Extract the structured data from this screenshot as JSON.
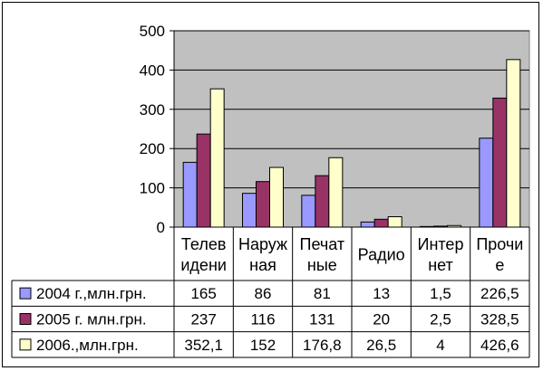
{
  "chart_data": {
    "type": "bar",
    "categories": [
      [
        "Телев",
        "идени"
      ],
      [
        "Наруж",
        "ная"
      ],
      [
        "Печат",
        "ные"
      ],
      [
        "Радио"
      ],
      [
        "Интер",
        "нет"
      ],
      [
        "Прочи",
        "е"
      ]
    ],
    "series": [
      {
        "name": "2004 г.,млн.грн.",
        "color": "#9999ff",
        "values": [
          165,
          86,
          81,
          13,
          1.5,
          226.5
        ],
        "labels": [
          "165",
          "86",
          "81",
          "13",
          "1,5",
          "226,5"
        ]
      },
      {
        "name": "2005 г. млн.грн.",
        "color": "#993366",
        "values": [
          237,
          116,
          131,
          20,
          2.5,
          328.5
        ],
        "labels": [
          "237",
          "116",
          "131",
          "20",
          "2,5",
          "328,5"
        ]
      },
      {
        "name": "2006.,млн.грн.",
        "color": "#ffffcc",
        "values": [
          352.1,
          152,
          176.8,
          26.5,
          4,
          426.6
        ],
        "labels": [
          "352,1",
          "152",
          "176,8",
          "26,5",
          "4",
          "426,6"
        ]
      }
    ],
    "ylim": [
      0,
      500
    ],
    "yticks": [
      "0",
      "100",
      "200",
      "300",
      "400",
      "500"
    ],
    "grid": true,
    "plot_background": "#c0c0c0",
    "legend": "data-table"
  }
}
